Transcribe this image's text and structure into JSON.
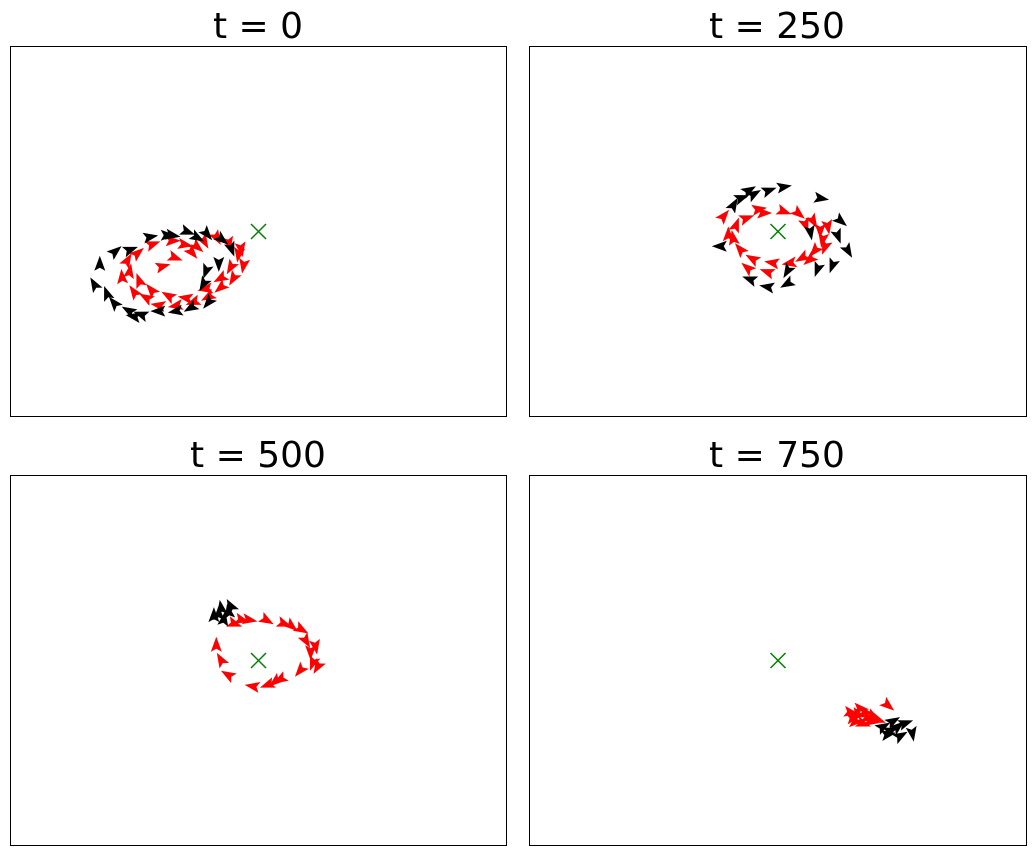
{
  "colors": {
    "group_a": "#ff0000",
    "group_b": "#000000",
    "target": "#008000",
    "frame": "#000000"
  },
  "chart_data": [
    {
      "type": "scatter",
      "title": "t = 0",
      "xlim": [
        -1,
        1
      ],
      "ylim": [
        -1,
        1
      ],
      "grid": false,
      "target": {
        "x": 0.0,
        "y": 0.0,
        "marker": "x"
      },
      "series": [
        {
          "color": "#ff0000",
          "marker": "arrow",
          "points": [
            {
              "x": -0.39,
              "y": -0.19,
              "angle": 15
            },
            {
              "x": -0.34,
              "y": -0.14,
              "angle": -20
            },
            {
              "x": -0.27,
              "y": -0.11,
              "angle": -50
            },
            {
              "x": -0.22,
              "y": -0.05,
              "angle": -60
            },
            {
              "x": -0.17,
              "y": -0.03,
              "angle": -60
            },
            {
              "x": -0.12,
              "y": -0.06,
              "angle": -80
            },
            {
              "x": -0.08,
              "y": -0.12,
              "angle": -100
            },
            {
              "x": -0.11,
              "y": -0.19,
              "angle": -120
            },
            {
              "x": -0.15,
              "y": -0.25,
              "angle": -150
            },
            {
              "x": -0.21,
              "y": -0.31,
              "angle": -170
            },
            {
              "x": -0.29,
              "y": -0.36,
              "angle": 170
            },
            {
              "x": -0.36,
              "y": -0.35,
              "angle": 150
            },
            {
              "x": -0.43,
              "y": -0.32,
              "angle": 130
            },
            {
              "x": -0.48,
              "y": -0.27,
              "angle": 110
            },
            {
              "x": -0.52,
              "y": -0.22,
              "angle": 80
            },
            {
              "x": -0.53,
              "y": -0.16,
              "angle": 60
            },
            {
              "x": -0.49,
              "y": -0.12,
              "angle": 40
            },
            {
              "x": -0.43,
              "y": -0.07,
              "angle": 20
            },
            {
              "x": -0.35,
              "y": -0.05,
              "angle": 0
            },
            {
              "x": -0.3,
              "y": -0.07,
              "angle": -10
            },
            {
              "x": -0.45,
              "y": -0.36,
              "angle": 150
            },
            {
              "x": -0.4,
              "y": -0.4,
              "angle": 170
            },
            {
              "x": -0.33,
              "y": -0.4,
              "angle": -170
            },
            {
              "x": -0.26,
              "y": -0.38,
              "angle": -160
            },
            {
              "x": -0.2,
              "y": -0.35,
              "angle": -150
            },
            {
              "x": -0.15,
              "y": -0.3,
              "angle": -140
            },
            {
              "x": -0.1,
              "y": -0.25,
              "angle": -120
            },
            {
              "x": -0.06,
              "y": -0.18,
              "angle": -100
            },
            {
              "x": -0.07,
              "y": -0.09,
              "angle": -80
            },
            {
              "x": -0.25,
              "y": -0.08,
              "angle": -40
            },
            {
              "x": -0.55,
              "y": -0.25,
              "angle": 95
            },
            {
              "x": -0.5,
              "y": -0.33,
              "angle": 125
            }
          ]
        },
        {
          "color": "#000000",
          "marker": "arrow",
          "points": [
            {
              "x": -0.64,
              "y": -0.18,
              "angle": 90
            },
            {
              "x": -0.58,
              "y": -0.11,
              "angle": 40
            },
            {
              "x": -0.52,
              "y": -0.1,
              "angle": 20
            },
            {
              "x": -0.44,
              "y": -0.03,
              "angle": 10
            },
            {
              "x": -0.35,
              "y": -0.02,
              "angle": -10
            },
            {
              "x": -0.29,
              "y": 0.0,
              "angle": -20
            },
            {
              "x": -0.21,
              "y": -0.01,
              "angle": -50
            },
            {
              "x": -0.15,
              "y": -0.04,
              "angle": -40
            },
            {
              "x": -0.11,
              "y": -0.09,
              "angle": -70
            },
            {
              "x": -0.16,
              "y": -0.17,
              "angle": -90
            },
            {
              "x": -0.21,
              "y": -0.21,
              "angle": -110
            },
            {
              "x": -0.22,
              "y": -0.28,
              "angle": -120
            },
            {
              "x": -0.27,
              "y": -0.41,
              "angle": -150
            },
            {
              "x": -0.33,
              "y": -0.43,
              "angle": -170
            },
            {
              "x": -0.4,
              "y": -0.43,
              "angle": 180
            },
            {
              "x": -0.47,
              "y": -0.45,
              "angle": 160
            },
            {
              "x": -0.52,
              "y": -0.43,
              "angle": 150
            },
            {
              "x": -0.58,
              "y": -0.39,
              "angle": 130
            },
            {
              "x": -0.61,
              "y": -0.34,
              "angle": 110
            },
            {
              "x": -0.66,
              "y": -0.29,
              "angle": 120
            },
            {
              "x": -0.2,
              "y": -0.38,
              "angle": -130
            },
            {
              "x": -0.5,
              "y": -0.46,
              "angle": 170
            },
            {
              "x": -0.37,
              "y": -0.02,
              "angle": 0
            },
            {
              "x": -0.25,
              "y": -0.03,
              "angle": -30
            }
          ]
        }
      ]
    },
    {
      "type": "scatter",
      "title": "t = 250",
      "xlim": [
        -1,
        1
      ],
      "ylim": [
        -1,
        1
      ],
      "grid": false,
      "target": {
        "x": 0.0,
        "y": 0.0,
        "marker": "x"
      },
      "series": [
        {
          "color": "#ff0000",
          "marker": "arrow",
          "points": [
            {
              "x": -0.13,
              "y": 0.07,
              "angle": 20
            },
            {
              "x": -0.06,
              "y": 0.1,
              "angle": 0
            },
            {
              "x": 0.02,
              "y": 0.11,
              "angle": -20
            },
            {
              "x": 0.08,
              "y": 0.1,
              "angle": -40
            },
            {
              "x": 0.14,
              "y": 0.06,
              "angle": -60
            },
            {
              "x": 0.17,
              "y": 0.01,
              "angle": -90
            },
            {
              "x": 0.18,
              "y": -0.04,
              "angle": -100
            },
            {
              "x": 0.15,
              "y": -0.1,
              "angle": -130
            },
            {
              "x": 0.1,
              "y": -0.14,
              "angle": -150
            },
            {
              "x": 0.05,
              "y": -0.17,
              "angle": -170
            },
            {
              "x": -0.02,
              "y": -0.17,
              "angle": 170
            },
            {
              "x": -0.1,
              "y": -0.15,
              "angle": 150
            },
            {
              "x": -0.15,
              "y": -0.1,
              "angle": 130
            },
            {
              "x": -0.18,
              "y": -0.04,
              "angle": 100
            },
            {
              "x": -0.17,
              "y": 0.03,
              "angle": 70
            },
            {
              "x": -0.22,
              "y": 0.08,
              "angle": 50
            },
            {
              "x": 0.11,
              "y": 0.04,
              "angle": -70
            },
            {
              "x": 0.19,
              "y": -0.08,
              "angle": -110
            },
            {
              "x": -0.08,
              "y": 0.12,
              "angle": 10
            },
            {
              "x": 0.2,
              "y": 0.03,
              "angle": -80
            },
            {
              "x": -0.2,
              "y": -0.02,
              "angle": 90
            },
            {
              "x": 0.13,
              "y": -0.15,
              "angle": -140
            },
            {
              "x": -0.04,
              "y": -0.22,
              "angle": 160
            },
            {
              "x": -0.12,
              "y": -0.2,
              "angle": 140
            }
          ]
        },
        {
          "color": "#000000",
          "marker": "arrow",
          "points": [
            {
              "x": -0.15,
              "y": 0.18,
              "angle": 20
            },
            {
              "x": -0.1,
              "y": 0.2,
              "angle": 30
            },
            {
              "x": -0.04,
              "y": 0.22,
              "angle": 20
            },
            {
              "x": 0.02,
              "y": 0.24,
              "angle": 10
            },
            {
              "x": 0.17,
              "y": 0.18,
              "angle": -10
            },
            {
              "x": 0.25,
              "y": 0.06,
              "angle": -40
            },
            {
              "x": 0.24,
              "y": -0.02,
              "angle": -70
            },
            {
              "x": 0.28,
              "y": -0.1,
              "angle": -60
            },
            {
              "x": 0.22,
              "y": -0.18,
              "angle": -110
            },
            {
              "x": 0.16,
              "y": -0.2,
              "angle": -110
            },
            {
              "x": 0.04,
              "y": -0.21,
              "angle": -120
            },
            {
              "x": 0.04,
              "y": -0.28,
              "angle": -150
            },
            {
              "x": -0.04,
              "y": -0.3,
              "angle": 170
            },
            {
              "x": -0.11,
              "y": -0.26,
              "angle": 160
            },
            {
              "x": -0.23,
              "y": -0.08,
              "angle": 180
            },
            {
              "x": -0.18,
              "y": 0.14,
              "angle": 60
            },
            {
              "x": -0.12,
              "y": 0.22,
              "angle": 30
            },
            {
              "x": 0.13,
              "y": 0.0,
              "angle": -80
            }
          ]
        }
      ]
    },
    {
      "type": "scatter",
      "title": "t = 500",
      "xlim": [
        -1,
        1
      ],
      "ylim": [
        -1,
        1
      ],
      "grid": false,
      "target": {
        "x": 0.0,
        "y": 0.0,
        "marker": "x"
      },
      "series": [
        {
          "color": "#ff0000",
          "marker": "arrow",
          "points": [
            {
              "x": -0.1,
              "y": 0.2,
              "angle": -20
            },
            {
              "x": -0.04,
              "y": 0.22,
              "angle": -10
            },
            {
              "x": 0.03,
              "y": 0.22,
              "angle": -30
            },
            {
              "x": 0.1,
              "y": 0.2,
              "angle": -20
            },
            {
              "x": 0.17,
              "y": 0.17,
              "angle": -30
            },
            {
              "x": 0.19,
              "y": 0.11,
              "angle": -60
            },
            {
              "x": 0.21,
              "y": 0.05,
              "angle": -90
            },
            {
              "x": 0.22,
              "y": -0.01,
              "angle": -110
            },
            {
              "x": 0.17,
              "y": -0.05,
              "angle": -130
            },
            {
              "x": 0.09,
              "y": -0.1,
              "angle": -150
            },
            {
              "x": 0.04,
              "y": -0.13,
              "angle": -160
            },
            {
              "x": -0.02,
              "y": -0.14,
              "angle": 170
            },
            {
              "x": -0.12,
              "y": -0.08,
              "angle": 150
            },
            {
              "x": -0.15,
              "y": 0.0,
              "angle": 120
            },
            {
              "x": -0.17,
              "y": 0.08,
              "angle": 90
            },
            {
              "x": 0.07,
              "y": -0.11,
              "angle": -140
            },
            {
              "x": 0.23,
              "y": 0.08,
              "angle": -80
            },
            {
              "x": -0.07,
              "y": 0.22,
              "angle": -15
            },
            {
              "x": 0.13,
              "y": 0.19,
              "angle": -40
            },
            {
              "x": 0.24,
              "y": -0.03,
              "angle": -120
            }
          ]
        },
        {
          "color": "#000000",
          "marker": "arrow",
          "points": [
            {
              "x": -0.16,
              "y": 0.25,
              "angle": 90
            },
            {
              "x": -0.12,
              "y": 0.26,
              "angle": 100
            },
            {
              "x": -0.14,
              "y": 0.22,
              "angle": 80
            },
            {
              "x": -0.18,
              "y": 0.24,
              "angle": 90
            },
            {
              "x": -0.11,
              "y": 0.29,
              "angle": 120
            },
            {
              "x": -0.15,
              "y": 0.28,
              "angle": 100
            }
          ]
        }
      ]
    },
    {
      "type": "scatter",
      "title": "t = 750",
      "xlim": [
        -1,
        1
      ],
      "ylim": [
        -1,
        1
      ],
      "grid": false,
      "target": {
        "x": 0.0,
        "y": 0.0,
        "marker": "x"
      },
      "series": [
        {
          "color": "#ff0000",
          "marker": "arrow",
          "points": [
            {
              "x": 0.29,
              "y": -0.28,
              "angle": -10
            },
            {
              "x": 0.32,
              "y": -0.29,
              "angle": -20
            },
            {
              "x": 0.35,
              "y": -0.28,
              "angle": -10
            },
            {
              "x": 0.38,
              "y": -0.3,
              "angle": -30
            },
            {
              "x": 0.31,
              "y": -0.33,
              "angle": 0
            },
            {
              "x": 0.34,
              "y": -0.34,
              "angle": -20
            },
            {
              "x": 0.37,
              "y": -0.33,
              "angle": -10
            },
            {
              "x": 0.4,
              "y": -0.32,
              "angle": -20
            },
            {
              "x": 0.44,
              "y": -0.24,
              "angle": -40
            },
            {
              "x": 0.3,
              "y": -0.31,
              "angle": 10
            },
            {
              "x": 0.36,
              "y": -0.31,
              "angle": -15
            },
            {
              "x": 0.33,
              "y": -0.26,
              "angle": -5
            }
          ]
        },
        {
          "color": "#000000",
          "marker": "arrow",
          "points": [
            {
              "x": 0.42,
              "y": -0.36,
              "angle": 30
            },
            {
              "x": 0.45,
              "y": -0.38,
              "angle": 20
            },
            {
              "x": 0.48,
              "y": -0.36,
              "angle": 40
            },
            {
              "x": 0.46,
              "y": -0.33,
              "angle": 30
            },
            {
              "x": 0.51,
              "y": -0.34,
              "angle": 20
            },
            {
              "x": 0.54,
              "y": -0.39,
              "angle": -80
            },
            {
              "x": 0.44,
              "y": -0.4,
              "angle": 10
            },
            {
              "x": 0.49,
              "y": -0.41,
              "angle": 30
            }
          ]
        }
      ]
    }
  ]
}
